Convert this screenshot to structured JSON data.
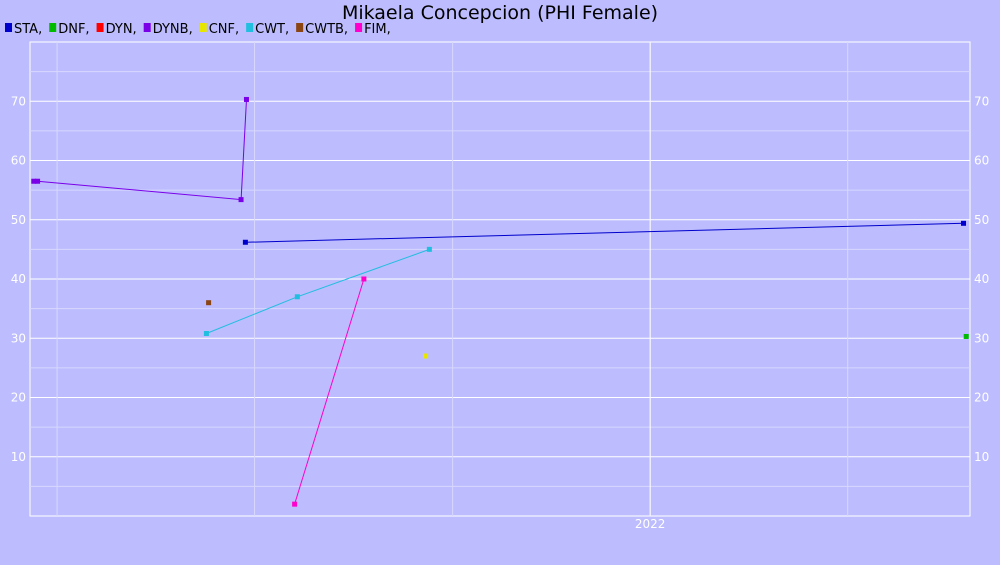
{
  "chart_data": {
    "type": "line",
    "title": "Mikaela Concepcion (PHI Female)",
    "xlabel": "",
    "ylabel": "",
    "ylim": [
      0,
      80
    ],
    "xlim": [
      "2018-11-12",
      "2023-08-15"
    ],
    "y_ticks": [
      10,
      20,
      30,
      40,
      50,
      60,
      70
    ],
    "x_tick_labels": [
      {
        "date": "2022-01-01",
        "label": "2022"
      }
    ],
    "grid": true,
    "legend_position": "top-left",
    "series": [
      {
        "name": "STA",
        "color": "#0000cc",
        "points": [
          {
            "x": "2019-12-15",
            "y": 46.2
          },
          {
            "x": "2023-08-03",
            "y": 49.4
          }
        ]
      },
      {
        "name": "DNF",
        "color": "#00bb00",
        "points": [
          {
            "x": "2023-08-08",
            "y": 30.3
          }
        ]
      },
      {
        "name": "DYN",
        "color": "#ff0000",
        "points": []
      },
      {
        "name": "DYNB",
        "color": "#7a00e8",
        "points": [
          {
            "x": "2018-11-19",
            "y": 56.5
          },
          {
            "x": "2018-11-26",
            "y": 56.5
          },
          {
            "x": "2019-12-07",
            "y": 53.4
          },
          {
            "x": "2019-12-17",
            "y": 70.3
          }
        ]
      },
      {
        "name": "CNF",
        "color": "#e6e600",
        "points": [
          {
            "x": "2020-11-12",
            "y": 27.0
          }
        ]
      },
      {
        "name": "CWT",
        "color": "#20bfdf",
        "points": [
          {
            "x": "2019-10-04",
            "y": 30.8
          },
          {
            "x": "2020-03-20",
            "y": 37.0
          },
          {
            "x": "2020-11-19",
            "y": 45.0
          }
        ]
      },
      {
        "name": "CWTB",
        "color": "#8b4513",
        "points": [
          {
            "x": "2019-10-08",
            "y": 36.0
          }
        ]
      },
      {
        "name": "FIM",
        "color": "#ff00cc",
        "points": [
          {
            "x": "2020-03-15",
            "y": 2.0
          },
          {
            "x": "2020-07-21",
            "y": 40.0
          }
        ]
      }
    ]
  }
}
